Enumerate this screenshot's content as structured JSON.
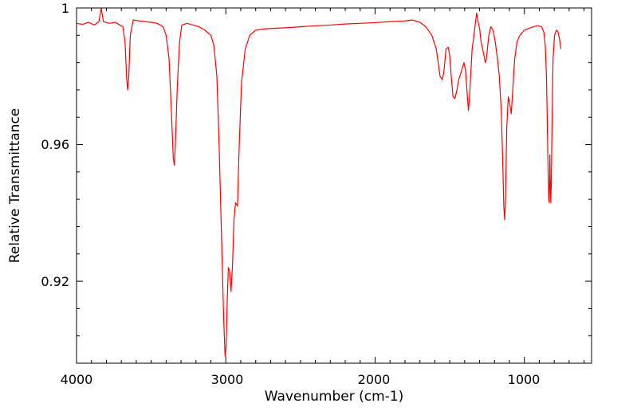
{
  "chart_data": {
    "type": "line",
    "title": "",
    "xlabel": "Wavenumber (cm-1)",
    "ylabel": "Relative Transmittance",
    "xlim": [
      4000,
      550
    ],
    "ylim": [
      0.896,
      1.0
    ],
    "x_reversed": true,
    "grid": false,
    "legend": "none",
    "x_ticks": [
      {
        "value": 4000,
        "label": "4000"
      },
      {
        "value": 3000,
        "label": "3000"
      },
      {
        "value": 2000,
        "label": "2000"
      },
      {
        "value": 1000,
        "label": "1000"
      }
    ],
    "y_ticks": [
      {
        "value": 1.0,
        "label": "1"
      },
      {
        "value": 0.96,
        "label": "0.96"
      },
      {
        "value": 0.92,
        "label": "0.92"
      }
    ],
    "x_minor_step": 100,
    "y_minor_step": 0.008,
    "series": [
      {
        "name": "",
        "color": "#ff0000",
        "points": [
          [
            4000,
            0.9955
          ],
          [
            3960,
            0.9952
          ],
          [
            3920,
            0.9958
          ],
          [
            3880,
            0.995
          ],
          [
            3850,
            0.996
          ],
          [
            3835,
            1.0
          ],
          [
            3820,
            0.996
          ],
          [
            3780,
            0.9955
          ],
          [
            3740,
            0.9958
          ],
          [
            3710,
            0.995
          ],
          [
            3690,
            0.9945
          ],
          [
            3675,
            0.99
          ],
          [
            3665,
            0.98
          ],
          [
            3658,
            0.976
          ],
          [
            3650,
            0.98
          ],
          [
            3640,
            0.992
          ],
          [
            3620,
            0.9965
          ],
          [
            3580,
            0.9962
          ],
          [
            3540,
            0.996
          ],
          [
            3500,
            0.9958
          ],
          [
            3460,
            0.9955
          ],
          [
            3420,
            0.9945
          ],
          [
            3400,
            0.992
          ],
          [
            3380,
            0.985
          ],
          [
            3365,
            0.97
          ],
          [
            3352,
            0.956
          ],
          [
            3345,
            0.954
          ],
          [
            3338,
            0.96
          ],
          [
            3325,
            0.977
          ],
          [
            3310,
            0.99
          ],
          [
            3295,
            0.995
          ],
          [
            3260,
            0.9955
          ],
          [
            3220,
            0.995
          ],
          [
            3180,
            0.9945
          ],
          [
            3140,
            0.9935
          ],
          [
            3100,
            0.992
          ],
          [
            3080,
            0.989
          ],
          [
            3060,
            0.98
          ],
          [
            3045,
            0.96
          ],
          [
            3030,
            0.935
          ],
          [
            3015,
            0.91
          ],
          [
            3005,
            0.898
          ],
          [
            2998,
            0.901
          ],
          [
            2990,
            0.915
          ],
          [
            2983,
            0.924
          ],
          [
            2975,
            0.923
          ],
          [
            2965,
            0.917
          ],
          [
            2955,
            0.925
          ],
          [
            2945,
            0.938
          ],
          [
            2935,
            0.943
          ],
          [
            2922,
            0.942
          ],
          [
            2910,
            0.96
          ],
          [
            2895,
            0.978
          ],
          [
            2870,
            0.988
          ],
          [
            2840,
            0.992
          ],
          [
            2800,
            0.9935
          ],
          [
            2760,
            0.9938
          ],
          [
            2700,
            0.994
          ],
          [
            2600,
            0.9942
          ],
          [
            2500,
            0.9945
          ],
          [
            2400,
            0.9948
          ],
          [
            2300,
            0.995
          ],
          [
            2200,
            0.9953
          ],
          [
            2100,
            0.9955
          ],
          [
            2000,
            0.9957
          ],
          [
            1900,
            0.996
          ],
          [
            1800,
            0.9962
          ],
          [
            1750,
            0.9965
          ],
          [
            1700,
            0.9958
          ],
          [
            1660,
            0.9945
          ],
          [
            1620,
            0.992
          ],
          [
            1590,
            0.988
          ],
          [
            1565,
            0.98
          ],
          [
            1550,
            0.979
          ],
          [
            1540,
            0.981
          ],
          [
            1525,
            0.988
          ],
          [
            1510,
            0.9885
          ],
          [
            1500,
            0.986
          ],
          [
            1490,
            0.98
          ],
          [
            1478,
            0.974
          ],
          [
            1465,
            0.9735
          ],
          [
            1452,
            0.976
          ],
          [
            1440,
            0.979
          ],
          [
            1425,
            0.981
          ],
          [
            1412,
            0.983
          ],
          [
            1405,
            0.984
          ],
          [
            1395,
            0.982
          ],
          [
            1385,
            0.976
          ],
          [
            1375,
            0.97
          ],
          [
            1368,
            0.9735
          ],
          [
            1360,
            0.98
          ],
          [
            1350,
            0.988
          ],
          [
            1335,
            0.993
          ],
          [
            1320,
            0.9985
          ],
          [
            1310,
            0.996
          ],
          [
            1300,
            0.994
          ],
          [
            1290,
            0.99
          ],
          [
            1280,
            0.988
          ],
          [
            1270,
            0.986
          ],
          [
            1262,
            0.984
          ],
          [
            1255,
            0.985
          ],
          [
            1248,
            0.988
          ],
          [
            1238,
            0.992
          ],
          [
            1225,
            0.9945
          ],
          [
            1210,
            0.9935
          ],
          [
            1195,
            0.99
          ],
          [
            1180,
            0.985
          ],
          [
            1168,
            0.98
          ],
          [
            1155,
            0.97
          ],
          [
            1145,
            0.955
          ],
          [
            1138,
            0.942
          ],
          [
            1132,
            0.938
          ],
          [
            1126,
            0.945
          ],
          [
            1118,
            0.965
          ],
          [
            1108,
            0.974
          ],
          [
            1098,
            0.972
          ],
          [
            1088,
            0.969
          ],
          [
            1078,
            0.976
          ],
          [
            1065,
            0.985
          ],
          [
            1050,
            0.99
          ],
          [
            1030,
            0.992
          ],
          [
            1000,
            0.9935
          ],
          [
            970,
            0.994
          ],
          [
            940,
            0.9945
          ],
          [
            910,
            0.9948
          ],
          [
            885,
            0.9945
          ],
          [
            870,
            0.993
          ],
          [
            860,
            0.989
          ],
          [
            852,
            0.98
          ],
          [
            846,
            0.965
          ],
          [
            841,
            0.952
          ],
          [
            837,
            0.944
          ],
          [
            834,
            0.943
          ],
          [
            831,
            0.95
          ],
          [
            829,
            0.957
          ],
          [
            826,
            0.948
          ],
          [
            823,
            0.943
          ],
          [
            820,
            0.948
          ],
          [
            815,
            0.965
          ],
          [
            808,
            0.985
          ],
          [
            798,
            0.992
          ],
          [
            785,
            0.9935
          ],
          [
            775,
            0.993
          ],
          [
            765,
            0.991
          ],
          [
            755,
            0.988
          ]
        ]
      }
    ]
  }
}
